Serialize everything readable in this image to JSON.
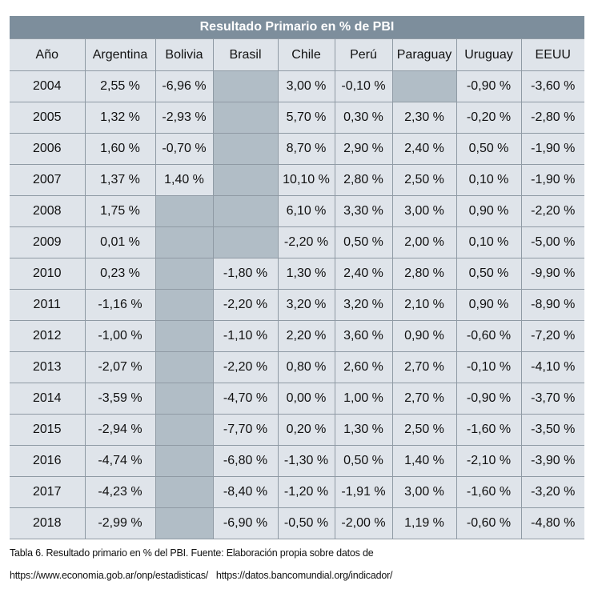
{
  "title": "Resultado Primario en % de PBI",
  "headers": [
    "Año",
    "Argentina",
    "Bolivia",
    "Brasil",
    "Chile",
    "Perú",
    "Paraguay",
    "Uruguay",
    "EEUU"
  ],
  "rows": [
    [
      "2004",
      "2,55 %",
      "-6,96 %",
      null,
      "3,00 %",
      "-0,10 %",
      null,
      "-0,90 %",
      "-3,60 %"
    ],
    [
      "2005",
      "1,32 %",
      "-2,93 %",
      null,
      "5,70 %",
      "0,30 %",
      "2,30 %",
      "-0,20 %",
      "-2,80 %"
    ],
    [
      "2006",
      "1,60 %",
      "-0,70 %",
      null,
      "8,70 %",
      "2,90 %",
      "2,40 %",
      "0,50 %",
      "-1,90 %"
    ],
    [
      "2007",
      "1,37 %",
      "1,40 %",
      null,
      "10,10 %",
      "2,80 %",
      "2,50 %",
      "0,10 %",
      "-1,90 %"
    ],
    [
      "2008",
      "1,75 %",
      null,
      null,
      "6,10 %",
      "3,30 %",
      "3,00 %",
      "0,90 %",
      "-2,20 %"
    ],
    [
      "2009",
      "0,01 %",
      null,
      null,
      "-2,20 %",
      "0,50 %",
      "2,00 %",
      "0,10 %",
      "-5,00 %"
    ],
    [
      "2010",
      "0,23 %",
      null,
      "-1,80 %",
      "1,30 %",
      "2,40 %",
      "2,80 %",
      "0,50 %",
      "-9,90 %"
    ],
    [
      "2011",
      "-1,16 %",
      null,
      "-2,20 %",
      "3,20 %",
      "3,20 %",
      "2,10 %",
      "0,90 %",
      "-8,90 %"
    ],
    [
      "2012",
      "-1,00 %",
      null,
      "-1,10 %",
      "2,20 %",
      "3,60 %",
      "0,90 %",
      "-0,60 %",
      "-7,20 %"
    ],
    [
      "2013",
      "-2,07 %",
      null,
      "-2,20 %",
      "0,80 %",
      "2,60 %",
      "2,70 %",
      "-0,10 %",
      "-4,10 %"
    ],
    [
      "2014",
      "-3,59 %",
      null,
      "-4,70 %",
      "0,00 %",
      "1,00 %",
      "2,70 %",
      "-0,90 %",
      "-3,70 %"
    ],
    [
      "2015",
      "-2,94 %",
      null,
      "-7,70 %",
      "0,20 %",
      "1,30 %",
      "2,50 %",
      "-1,60 %",
      "-3,50 %"
    ],
    [
      "2016",
      "-4,74 %",
      null,
      "-6,80 %",
      "-1,30 %",
      "0,50 %",
      "1,40 %",
      "-2,10 %",
      "-3,90 %"
    ],
    [
      "2017",
      "-4,23 %",
      null,
      "-8,40 %",
      "-1,20 %",
      "-1,91 %",
      "3,00 %",
      "-1,60 %",
      "-3,20 %"
    ],
    [
      "2018",
      "-2,99 %",
      null,
      "-6,90 %",
      "-0,50 %",
      "-2,00 %",
      "1,19 %",
      "-0,60 %",
      "-4,80 %"
    ]
  ],
  "caption": {
    "line1": "Tabla 6. Resultado primario en % del PBI. Fuente: Elaboración propia sobre datos de",
    "line2": "https://www.economia.gob.ar/onp/estadisticas/   https://datos.bancomundial.org/indicador/"
  }
}
